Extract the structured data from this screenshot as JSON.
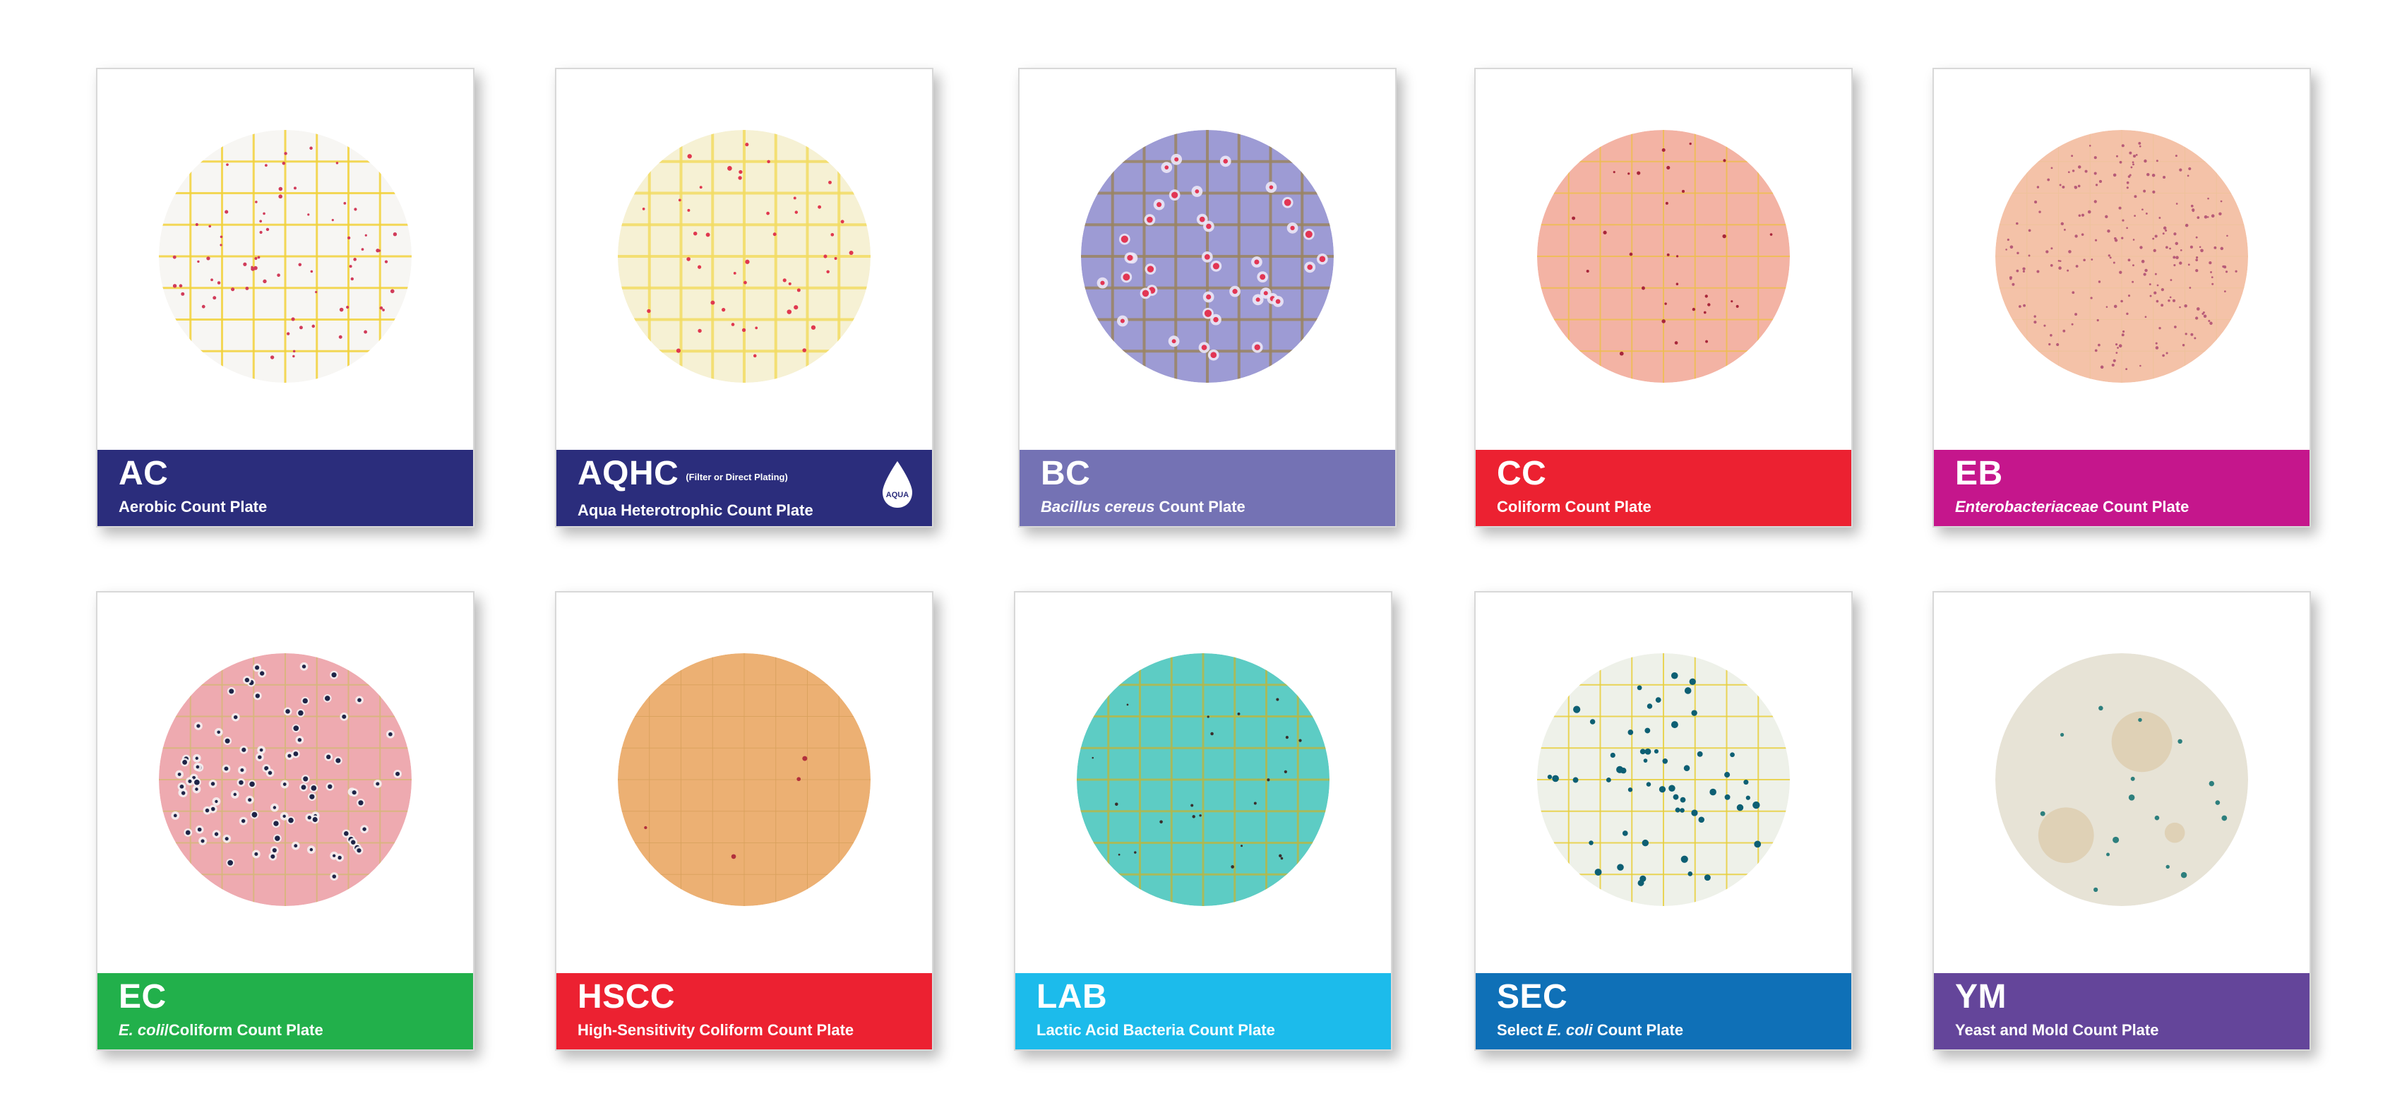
{
  "colors": {
    "navy": "#2b2d7c",
    "periwinkle": "#7472b4",
    "red": "#ec2131",
    "magenta": "#c5168c",
    "green": "#22b04b",
    "cyan": "#1cbbeb",
    "blue": "#0f70b7",
    "purple": "#64459a"
  },
  "plates": [
    {
      "code": "AC",
      "name": "Aerobic Count Plate",
      "color": "#2b2d7c",
      "plate_icon": "aerobic-count-plate-image"
    },
    {
      "code": "AQHC",
      "note": "(Filter or Direct Plating)",
      "name": "Aqua Heterotrophic Count Plate",
      "color": "#2b2d7c",
      "badge": "AQUA",
      "badge_icon": "water-drop-icon",
      "plate_icon": "aqua-heterotrophic-plate-image"
    },
    {
      "code": "BC",
      "name_italic": "Bacillus cereus",
      "name_rest": " Count Plate",
      "color": "#7472b4",
      "plate_icon": "bacillus-cereus-plate-image"
    },
    {
      "code": "CC",
      "name": "Coliform Count Plate",
      "color": "#ec2131",
      "plate_icon": "coliform-count-plate-image"
    },
    {
      "code": "EB",
      "name_italic": "Enterobacteriaceae",
      "name_rest": " Count Plate",
      "color": "#c5168c",
      "plate_icon": "enterobacteriaceae-plate-image"
    },
    {
      "code": "EC",
      "name_italic": "E. coli",
      "name_rest": "/Coliform Count Plate",
      "color": "#22b04b",
      "plate_icon": "ecoli-coliform-plate-image"
    },
    {
      "code": "HSCC",
      "name": "High-Sensitivity Coliform Count Plate",
      "color": "#ec2131",
      "plate_icon": "high-sensitivity-coliform-plate-image"
    },
    {
      "code": "LAB",
      "name": "Lactic Acid Bacteria Count Plate",
      "color": "#1cbbeb",
      "plate_icon": "lactic-acid-bacteria-plate-image"
    },
    {
      "code": "SEC",
      "name_pre": "Select ",
      "name_italic": "E. coli",
      "name_rest": " Count Plate",
      "color": "#0f70b7",
      "plate_icon": "select-ecoli-plate-image"
    },
    {
      "code": "YM",
      "name": "Yeast and Mold Count Plate",
      "color": "#64459a",
      "plate_icon": "yeast-mold-plate-image"
    }
  ]
}
